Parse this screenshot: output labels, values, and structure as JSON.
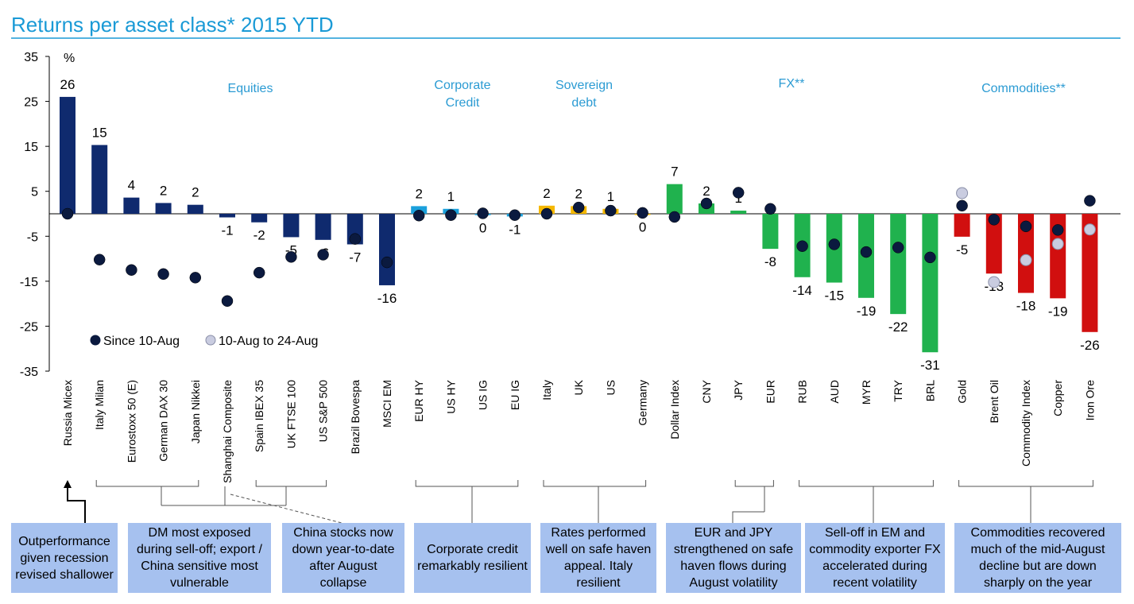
{
  "chart_data": {
    "type": "bar",
    "title": "Returns per asset class* 2015 YTD",
    "ylabel": "%",
    "ylim": [
      -35,
      35
    ],
    "yticks": [
      35,
      25,
      15,
      5,
      -5,
      -15,
      -25,
      -35
    ],
    "categories": [
      "Russia Micex",
      "Italy Milan",
      "Eurostoxx 50 (E)",
      "German DAX 30",
      "Japan Nikkei",
      "Shanghai Composite",
      "Spain IBEX 35",
      "UK FTSE 100",
      "US S&P 500",
      "Brazil Bovespa",
      "MSCI EM",
      "EUR HY",
      "US HY",
      "US IG",
      "EU IG",
      "Italy",
      "UK",
      "US",
      "Germany",
      "Dollar Index",
      "CNY",
      "JPY",
      "EUR",
      "RUB",
      "AUD",
      "MYR",
      "TRY",
      "BRL",
      "Gold",
      "Brent Oil",
      "Commodity Index",
      "Copper",
      "Iron Ore"
    ],
    "series": [
      {
        "name": "2015 YTD",
        "values": [
          26,
          15.3,
          3.6,
          2.4,
          2,
          -0.8,
          -1.9,
          -5.2,
          -5.8,
          -6.8,
          -15.9,
          1.7,
          1.1,
          -0.3,
          -0.6,
          1.8,
          1.7,
          1.1,
          -0.1,
          6.6,
          2.3,
          0.7,
          -7.8,
          -14.1,
          -15.3,
          -18.7,
          -22.3,
          -30.8,
          -5.1,
          -13.3,
          -17.6,
          -18.8,
          -26.3
        ],
        "labels": [
          "26",
          "15",
          "4",
          "2",
          "2",
          "-1",
          "-2",
          "-5",
          "-6",
          "-7",
          "-16",
          "2",
          "1",
          "0",
          "-1",
          "2",
          "2",
          "1",
          "0",
          "7",
          "2",
          "1",
          "-8",
          "-14",
          "-15",
          "-19",
          "-22",
          "-31",
          "-5",
          "-13",
          "-18",
          "-19",
          "-26"
        ]
      },
      {
        "name": "Since 10-Aug",
        "values": [
          0,
          -10.2,
          -12.5,
          -13.4,
          -14.2,
          -19.4,
          -13.1,
          -9.6,
          -9.1,
          -5.6,
          -10.8,
          -0.4,
          -0.3,
          0.1,
          -0.3,
          0,
          1.4,
          0.7,
          0.2,
          -0.7,
          2.3,
          4.7,
          1.1,
          -7.2,
          -6.8,
          -8.5,
          -7.5,
          -9.7,
          1.8,
          -1.3,
          -2.8,
          -3.6,
          2.9
        ]
      },
      {
        "name": "10-Aug to 24-Aug",
        "points": {
          "Gold": 4.6,
          "Brent Oil": -15.2,
          "Commodity Index": -10.3,
          "Copper": -6.7,
          "Iron Ore": -3.5
        }
      }
    ],
    "colors": {
      "Equities": "#0f2a6e",
      "Corporate Credit": "#1aa0dc",
      "Sovereign debt": "#f5b800",
      "FX DM": "#20b24e",
      "FX EM": "#20b24e",
      "Commodities": "#d10f0f",
      "dot_dark": "#0b1a3f",
      "dot_light": "#c9cce0"
    },
    "groups": [
      {
        "name": "Equities",
        "label": "Equities",
        "color_key": "Equities"
      },
      {
        "name": "Corporate Credit",
        "label": "Corporate\nCredit",
        "color_key": "Corporate Credit"
      },
      {
        "name": "Sovereign debt",
        "label": "Sovereign\ndebt",
        "color_key": "Sovereign debt"
      },
      {
        "name": "FX",
        "label": "FX**",
        "color_key": "FX DM"
      },
      {
        "name": "Commodities",
        "label": "Commodities**",
        "color_key": "Commodities"
      }
    ],
    "legend": {
      "position": "bottom-left",
      "items": [
        "Since 10-Aug",
        "10-Aug to 24-Aug"
      ]
    }
  },
  "annotations": [
    {
      "text": "Outperformance given recession revised shallower"
    },
    {
      "text": "DM most exposed during sell-off; export / China sensitive most vulnerable"
    },
    {
      "text": "China stocks now down year-to-date after August collapse"
    },
    {
      "text": "Corporate credit remarkably resilient"
    },
    {
      "text": "Rates performed well on safe haven appeal. Italy resilient"
    },
    {
      "text": "EUR and JPY strengthened on safe haven flows during August volatility"
    },
    {
      "text": "Sell-off in EM and commodity exporter FX accelerated during recent volatility"
    },
    {
      "text": "Commodities recovered much of the mid-August decline but are down sharply on the year"
    }
  ]
}
